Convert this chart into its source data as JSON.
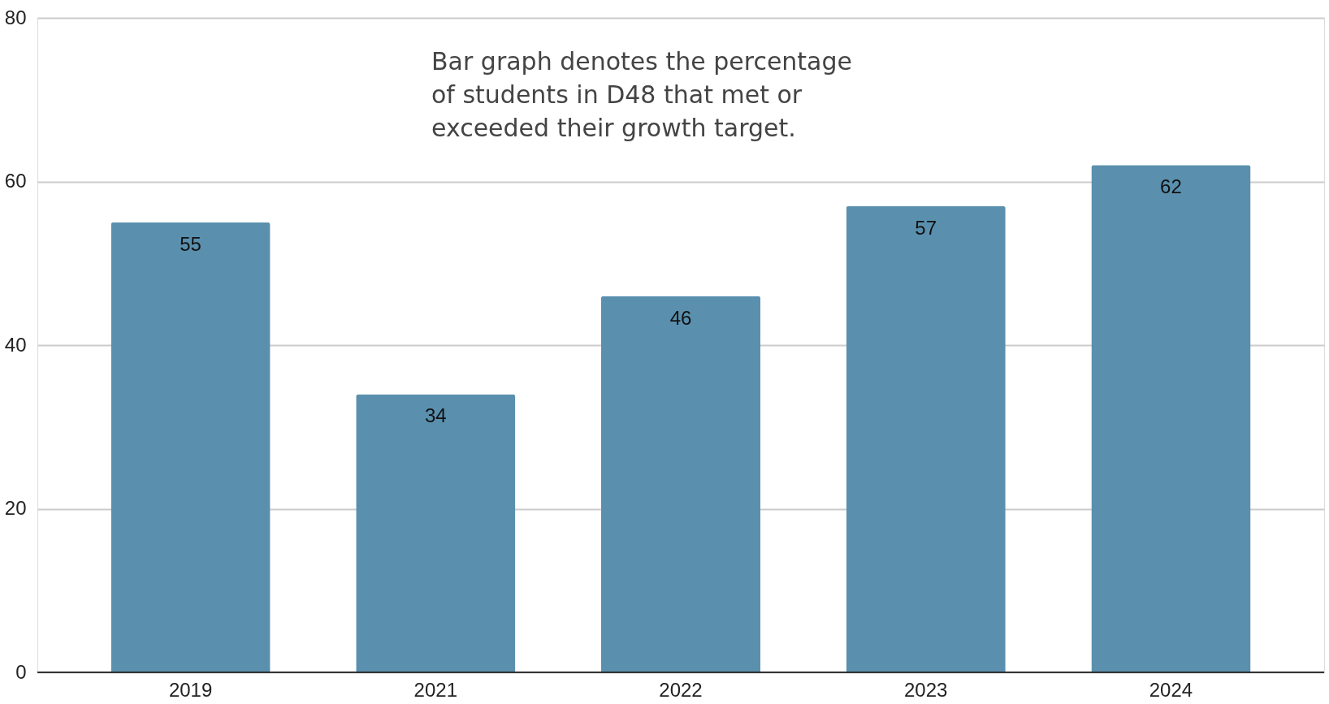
{
  "chart_data": {
    "type": "bar",
    "categories": [
      "2019",
      "2021",
      "2022",
      "2023",
      "2024"
    ],
    "values": [
      55,
      34,
      46,
      57,
      62
    ],
    "color": "#5a90ae",
    "ylim": [
      0,
      80
    ],
    "yticks": [
      0,
      20,
      40,
      60,
      80
    ],
    "grid": "y",
    "data_labels": true,
    "annotations": [
      "Bar graph denotes the percentage of students in D48 that met or exceeded their growth target."
    ]
  }
}
